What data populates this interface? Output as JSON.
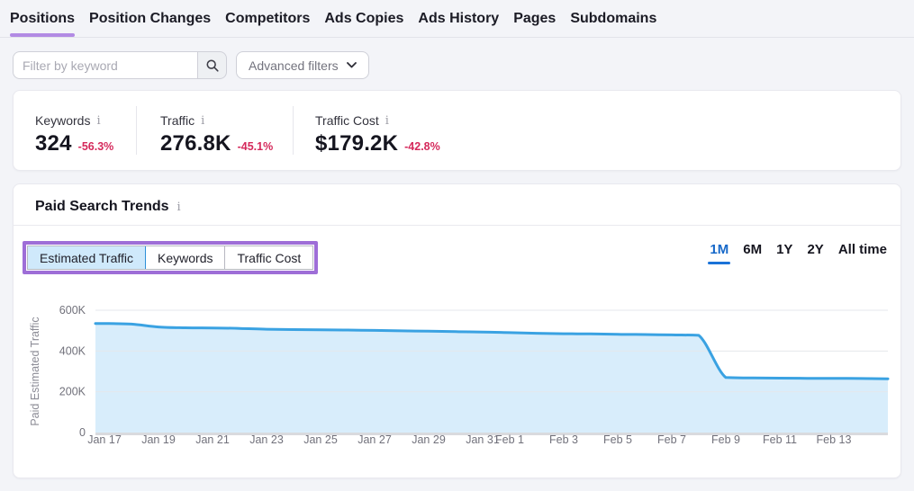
{
  "tabs": {
    "items": [
      {
        "label": "Positions",
        "active": true
      },
      {
        "label": "Position Changes",
        "active": false
      },
      {
        "label": "Competitors",
        "active": false
      },
      {
        "label": "Ads Copies",
        "active": false
      },
      {
        "label": "Ads History",
        "active": false
      },
      {
        "label": "Pages",
        "active": false
      },
      {
        "label": "Subdomains",
        "active": false
      }
    ]
  },
  "filters": {
    "search_placeholder": "Filter by keyword",
    "advanced_label": "Advanced filters"
  },
  "stats": {
    "items": [
      {
        "label": "Keywords",
        "value": "324",
        "change": "-56.3%"
      },
      {
        "label": "Traffic",
        "value": "276.8K",
        "change": "-45.1%"
      },
      {
        "label": "Traffic Cost",
        "value": "$179.2K",
        "change": "-42.8%"
      }
    ]
  },
  "trends": {
    "title": "Paid Search Trends",
    "toggles": [
      {
        "label": "Estimated Traffic",
        "selected": true
      },
      {
        "label": "Keywords",
        "selected": false
      },
      {
        "label": "Traffic Cost",
        "selected": false
      }
    ],
    "ranges": [
      {
        "label": "1M",
        "active": true
      },
      {
        "label": "6M",
        "active": false
      },
      {
        "label": "1Y",
        "active": false
      },
      {
        "label": "2Y",
        "active": false
      },
      {
        "label": "All time",
        "active": false
      }
    ]
  },
  "colors": {
    "accent_purple": "#b28ae4",
    "annotation_purple": "#9e6ed7",
    "active_blue": "#1668c9",
    "chart_line": "#3aa2e2",
    "chart_fill": "#d8edfb",
    "negative_red": "#d5295b",
    "selected_toggle_bg": "#cfe9fb"
  },
  "chart_data": {
    "type": "area",
    "ylabel": "Paid Estimated Traffic",
    "ylim": [
      0,
      600000
    ],
    "grid": true,
    "x_dates": [
      "Jan 17",
      "Jan 18",
      "Jan 19",
      "Jan 20",
      "Jan 21",
      "Jan 22",
      "Jan 23",
      "Jan 24",
      "Jan 25",
      "Jan 26",
      "Jan 27",
      "Jan 28",
      "Jan 29",
      "Jan 30",
      "Jan 31",
      "Feb 1",
      "Feb 2",
      "Feb 3",
      "Feb 4",
      "Feb 5",
      "Feb 6",
      "Feb 7",
      "Feb 8",
      "Feb 9",
      "Feb 10",
      "Feb 11",
      "Feb 12",
      "Feb 13",
      "Feb 14",
      "Feb 15"
    ],
    "values": [
      535000,
      532000,
      518000,
      514000,
      513000,
      511000,
      507000,
      505000,
      504000,
      503000,
      501000,
      499000,
      497000,
      495000,
      493000,
      490000,
      487000,
      485000,
      484000,
      482000,
      481000,
      479000,
      477000,
      270000,
      268000,
      267000,
      266000,
      266000,
      265000,
      264000
    ],
    "yticks": [
      {
        "label": "0",
        "value": 0
      },
      {
        "label": "200K",
        "value": 200000
      },
      {
        "label": "400K",
        "value": 400000
      },
      {
        "label": "600K",
        "value": 600000
      }
    ],
    "x_ticks": [
      {
        "label": "Jan 17",
        "day": 0
      },
      {
        "label": "Jan 19",
        "day": 2
      },
      {
        "label": "Jan 21",
        "day": 4
      },
      {
        "label": "Jan 23",
        "day": 6
      },
      {
        "label": "Jan 25",
        "day": 8
      },
      {
        "label": "Jan 27",
        "day": 10
      },
      {
        "label": "Jan 29",
        "day": 12
      },
      {
        "label": "Jan 31",
        "day": 14
      },
      {
        "label": "Feb 1",
        "day": 15
      },
      {
        "label": "Feb 3",
        "day": 17
      },
      {
        "label": "Feb 5",
        "day": 19
      },
      {
        "label": "Feb 7",
        "day": 21
      },
      {
        "label": "Feb 9",
        "day": 23
      },
      {
        "label": "Feb 11",
        "day": 25
      },
      {
        "label": "Feb 13",
        "day": 27
      }
    ]
  }
}
